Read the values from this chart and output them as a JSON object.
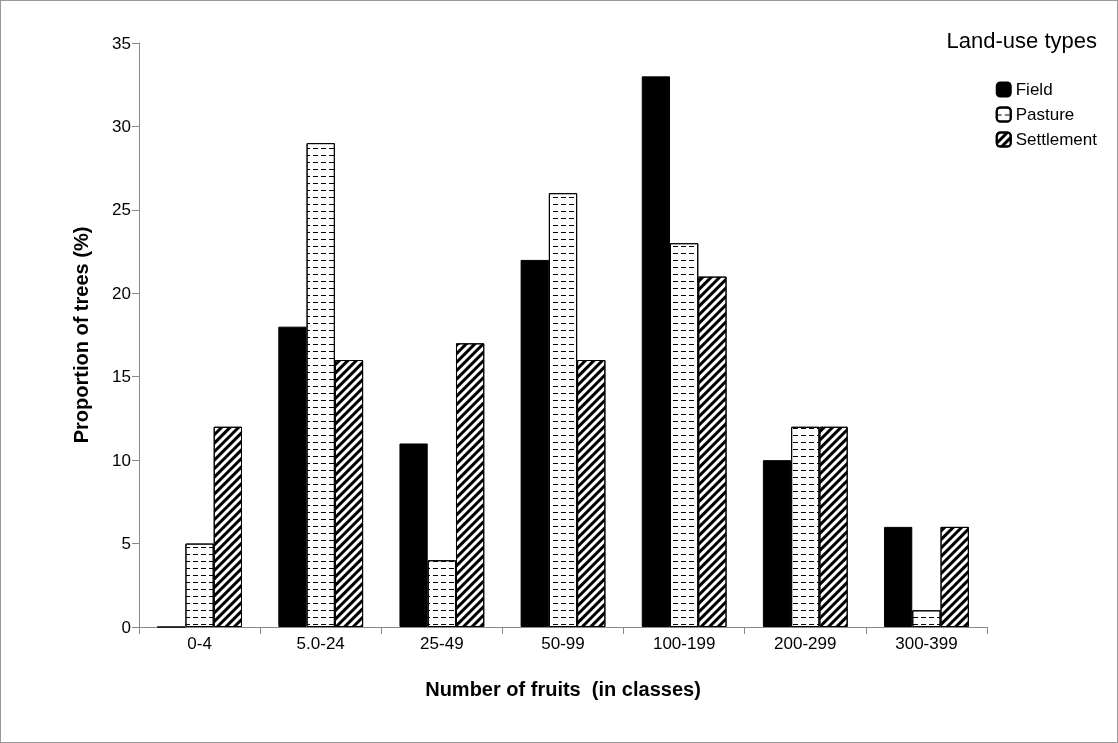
{
  "chart_data": {
    "type": "bar",
    "xlabel": "Number of fruits  (in classes)",
    "ylabel": "Proportion of trees (%)",
    "legend_title": "Land-use types",
    "categories": [
      "0-4",
      "5.0-24",
      "25-49",
      "50-99",
      "100-199",
      "200-299",
      "300-399"
    ],
    "series": [
      {
        "name": "Field",
        "color": "#000000",
        "values": [
          0,
          18,
          11,
          22,
          33,
          10,
          6
        ]
      },
      {
        "name": "Pasture",
        "color": "#ffffff",
        "values": [
          5,
          29,
          4,
          26,
          23,
          12,
          1
        ]
      },
      {
        "name": "Settlement",
        "color": "#ffffff",
        "values": [
          12,
          16,
          17,
          16,
          21,
          12,
          6
        ]
      }
    ],
    "ylim": [
      0,
      35
    ],
    "yticks": [
      0,
      5,
      10,
      15,
      20,
      25,
      30,
      35
    ],
    "grid": false,
    "legend": "top right"
  }
}
